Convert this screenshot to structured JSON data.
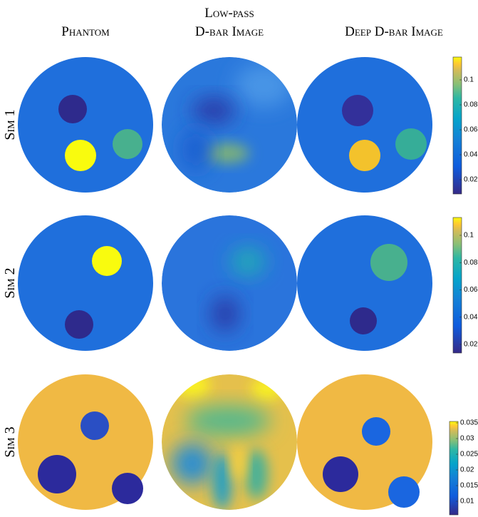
{
  "columns": [
    "Phantom",
    "Low-pass",
    "D-bar Image",
    "Deep D-bar Image"
  ],
  "rows": [
    "Sim 1",
    "Sim 2",
    "Sim 3"
  ],
  "colorbars": [
    {
      "ticks": [
        "0.1",
        "0.08",
        "0.06",
        "0.04",
        "0.02"
      ]
    },
    {
      "ticks": [
        "0.1",
        "0.08",
        "0.06",
        "0.04",
        "0.02"
      ]
    },
    {
      "ticks": [
        "0.035",
        "0.03",
        "0.025",
        "0.02",
        "0.015",
        "0.01"
      ]
    }
  ]
}
